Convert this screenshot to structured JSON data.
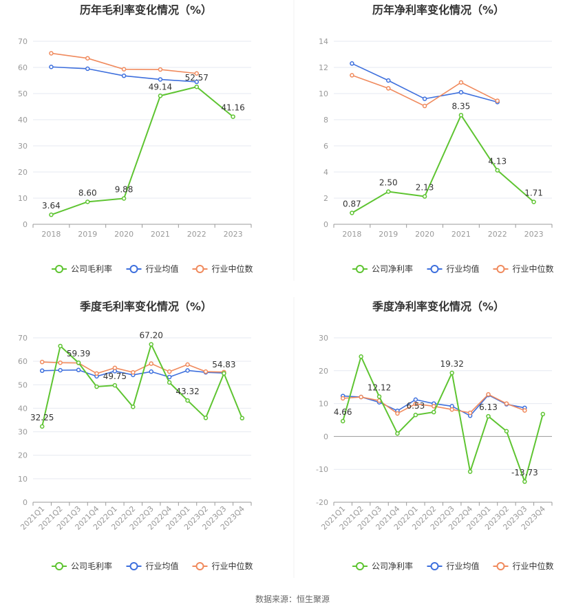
{
  "colors": {
    "company": "#5ec431",
    "industry_avg": "#3d6fdd",
    "industry_median": "#f08a5d",
    "axis_text": "#999999",
    "grid": "#e6e9f0",
    "title": "#333333"
  },
  "source_text": "数据来源：恒生聚源",
  "chart_data": [
    {
      "type": "line",
      "title": "历年毛利率变化情况（%）",
      "categories": [
        "2018",
        "2019",
        "2020",
        "2021",
        "2022",
        "2023"
      ],
      "ylim": [
        0,
        70
      ],
      "yticks": [
        0,
        10,
        20,
        30,
        40,
        50,
        60,
        70
      ],
      "grid": true,
      "legend_position": "bottom",
      "series": [
        {
          "name": "公司毛利率",
          "values": [
            3.64,
            8.6,
            9.88,
            49.14,
            52.57,
            41.16
          ],
          "labels": [
            "3.64",
            "8.60",
            "9.88",
            "49.14",
            "52.57",
            "41.16"
          ]
        },
        {
          "name": "行业均值",
          "values": [
            60.2,
            59.5,
            56.8,
            55.4,
            54.5,
            null
          ]
        },
        {
          "name": "行业中位数",
          "values": [
            65.4,
            63.5,
            59.3,
            59.2,
            57.7,
            null
          ]
        }
      ]
    },
    {
      "type": "line",
      "title": "历年净利率变化情况（%）",
      "categories": [
        "2018",
        "2019",
        "2020",
        "2021",
        "2022",
        "2023"
      ],
      "ylim": [
        0,
        14
      ],
      "yticks": [
        0,
        2,
        4,
        6,
        8,
        10,
        12,
        14
      ],
      "grid": true,
      "legend_position": "bottom",
      "series": [
        {
          "name": "公司净利率",
          "values": [
            0.87,
            2.5,
            2.13,
            8.35,
            4.13,
            1.71
          ],
          "labels": [
            "0.87",
            "2.50",
            "2.13",
            "8.35",
            "4.13",
            "1.71"
          ]
        },
        {
          "name": "行业均值",
          "values": [
            12.3,
            11.0,
            9.6,
            10.1,
            9.35,
            null
          ]
        },
        {
          "name": "行业中位数",
          "values": [
            11.4,
            10.4,
            9.05,
            10.85,
            9.45,
            null
          ]
        }
      ]
    },
    {
      "type": "line",
      "title": "季度毛利率变化情况（%）",
      "categories": [
        "2021Q1",
        "2021Q2",
        "2021Q3",
        "2021Q4",
        "2022Q1",
        "2022Q2",
        "2022Q3",
        "2022Q4",
        "2023Q1",
        "2023Q2",
        "2023Q3",
        "2023Q4"
      ],
      "ylim": [
        0,
        70
      ],
      "yticks": [
        0,
        10,
        20,
        30,
        40,
        50,
        60,
        70
      ],
      "grid": true,
      "legend_position": "bottom",
      "series": [
        {
          "name": "公司毛利率",
          "values": [
            32.25,
            66.5,
            59.39,
            49.2,
            49.75,
            40.6,
            67.2,
            51.0,
            43.32,
            35.9,
            54.83,
            35.8
          ],
          "labels": [
            "32.25",
            "",
            "59.39",
            "",
            "49.75",
            "",
            "67.20",
            "",
            "43.32",
            "",
            "54.83",
            ""
          ]
        },
        {
          "name": "行业均值",
          "values": [
            56.0,
            56.2,
            56.3,
            53.6,
            55.8,
            54.2,
            55.6,
            53.3,
            56.1,
            55.3,
            55.0,
            null
          ]
        },
        {
          "name": "行业中位数",
          "values": [
            59.7,
            59.4,
            59.3,
            54.8,
            57.2,
            55.3,
            59.0,
            55.6,
            58.6,
            55.6,
            55.4,
            null
          ]
        }
      ]
    },
    {
      "type": "line",
      "title": "季度净利率变化情况（%）",
      "categories": [
        "2021Q1",
        "2021Q2",
        "2021Q3",
        "2021Q4",
        "2022Q1",
        "2022Q2",
        "2022Q3",
        "2022Q4",
        "2023Q1",
        "2023Q2",
        "2023Q3",
        "2023Q4"
      ],
      "ylim": [
        -20,
        30
      ],
      "yticks": [
        -20,
        -10,
        0,
        10,
        20,
        30
      ],
      "grid": true,
      "legend_position": "bottom",
      "series": [
        {
          "name": "公司净利率",
          "values": [
            4.66,
            24.3,
            12.12,
            0.9,
            6.53,
            7.4,
            19.32,
            -10.7,
            6.13,
            1.6,
            -13.73,
            6.8
          ],
          "labels": [
            "4.66",
            "",
            "12.12",
            "",
            "6.53",
            "",
            "19.32",
            "",
            "6.13",
            "",
            "-13.73",
            ""
          ]
        },
        {
          "name": "行业均值",
          "values": [
            12.3,
            12.0,
            10.4,
            7.8,
            11.2,
            10.0,
            9.2,
            6.3,
            12.6,
            9.8,
            8.7,
            null
          ]
        },
        {
          "name": "行业中位数",
          "values": [
            11.6,
            12.0,
            10.9,
            7.0,
            9.9,
            9.2,
            8.2,
            7.2,
            12.8,
            10.0,
            7.9,
            null
          ]
        }
      ]
    }
  ]
}
